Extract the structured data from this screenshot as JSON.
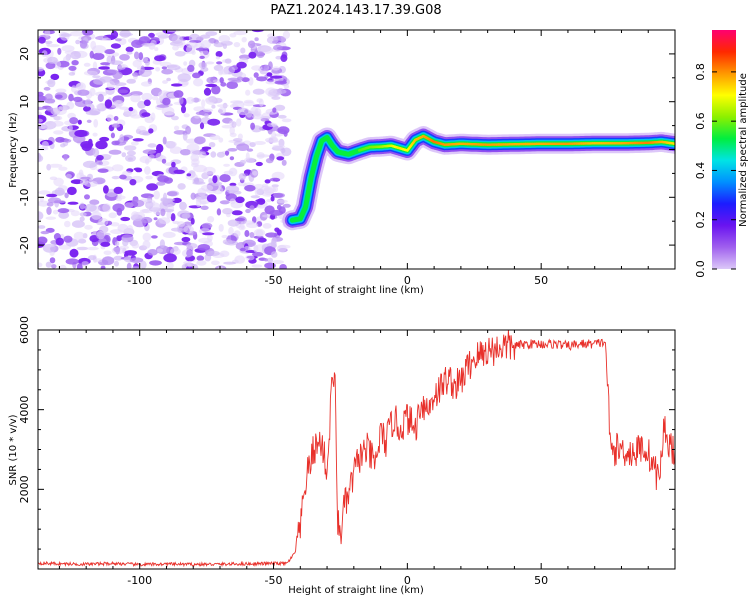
{
  "chart_data": [
    {
      "type": "heatmap",
      "title": "PAZ1.2024.143.17.39.G08",
      "xlabel": "Height of straight line (km)",
      "ylabel": "Frequency (Hz)",
      "colorbar_label": "Normalized spectral amplitude",
      "xlim": [
        -138,
        100
      ],
      "ylim": [
        -25,
        25
      ],
      "xticks": [
        -100,
        -50,
        0,
        50
      ],
      "xtick_labels": [
        "-100",
        "-50",
        "0",
        "50"
      ],
      "yticks": [
        -20,
        -10,
        0,
        10,
        20
      ],
      "ytick_labels": [
        "-20",
        "-10",
        "0",
        "10",
        "20"
      ],
      "colorbar_ticks": [
        0.0,
        0.2,
        0.4,
        0.6,
        0.8
      ],
      "colorbar_tick_labels": [
        "0.0",
        "0.2",
        "0.4",
        "0.6",
        "0.8"
      ],
      "colormap": [
        "#dcc8f8",
        "#a060ee",
        "#6a14f0",
        "#1c1cff",
        "#0090ff",
        "#00e4e4",
        "#00ee40",
        "#8cf000",
        "#ffff00",
        "#ff9800",
        "#ff2800",
        "#ff0070"
      ],
      "noise_region_x": [
        -138,
        -45
      ],
      "ridge": {
        "x": [
          -43,
          -40,
          -38,
          -36,
          -34,
          -32,
          -30,
          -28,
          -26,
          -22,
          -18,
          -14,
          -10,
          -6,
          -3,
          0,
          3,
          6,
          8,
          10,
          14,
          20,
          30,
          40,
          50,
          60,
          70,
          80,
          90,
          95,
          100
        ],
        "y": [
          -14.8,
          -14.5,
          -12.0,
          -6.0,
          -1.5,
          1.8,
          2.5,
          0.8,
          -0.5,
          -1.0,
          -0.2,
          0.5,
          0.6,
          0.8,
          0.3,
          -0.2,
          2.0,
          2.8,
          2.2,
          1.6,
          1.0,
          1.2,
          1.0,
          1.1,
          1.2,
          1.2,
          1.3,
          1.3,
          1.4,
          1.6,
          1.2
        ],
        "amplitude": [
          0.35,
          0.38,
          0.32,
          0.3,
          0.32,
          0.35,
          0.36,
          0.38,
          0.42,
          0.55,
          0.6,
          0.62,
          0.65,
          0.7,
          0.75,
          0.72,
          0.78,
          0.8,
          0.82,
          0.85,
          0.82,
          0.8,
          0.82,
          0.8,
          0.8,
          0.82,
          0.78,
          0.8,
          0.84,
          0.8,
          0.75
        ]
      }
    },
    {
      "type": "line",
      "xlabel": "Height of straight line (km)",
      "ylabel": "SNR (10 * v/v)",
      "xlim": [
        -138,
        100
      ],
      "ylim": [
        0,
        6000
      ],
      "xticks": [
        -100,
        -50,
        0,
        50
      ],
      "xtick_labels": [
        "-100",
        "-50",
        "0",
        "50"
      ],
      "yticks": [
        2000,
        4000,
        6000
      ],
      "ytick_labels": [
        "2000",
        "4000",
        "6000"
      ],
      "color": "#e8302a",
      "series": [
        {
          "x": [
            -138,
            -130,
            -120,
            -110,
            -100,
            -90,
            -80,
            -70,
            -60,
            -50,
            -45,
            -42,
            -40,
            -38,
            -35,
            -32,
            -30,
            -29,
            -28,
            -27,
            -26,
            -25,
            -24,
            -22,
            -20,
            -18,
            -15,
            -12,
            -10,
            -8,
            -5,
            -3,
            0,
            3,
            5,
            8,
            10,
            12,
            15,
            18,
            20,
            22,
            25,
            28,
            30,
            33,
            35,
            40,
            45,
            50,
            55,
            60,
            65,
            70,
            74,
            76,
            77,
            80,
            85,
            88,
            90,
            92,
            94,
            96,
            98,
            100
          ],
          "y": [
            150,
            130,
            120,
            140,
            110,
            125,
            115,
            120,
            130,
            140,
            140,
            400,
            1000,
            2200,
            3000,
            3200,
            2400,
            3600,
            5000,
            4500,
            1200,
            800,
            1500,
            1800,
            2400,
            2800,
            3000,
            2600,
            3400,
            3200,
            3800,
            3500,
            3800,
            3500,
            4200,
            4000,
            4400,
            4500,
            4800,
            4600,
            4700,
            5000,
            5300,
            5400,
            5500,
            5500,
            5600,
            5600,
            5650,
            5650,
            5650,
            5600,
            5650,
            5650,
            5700,
            2900,
            3000,
            3000,
            2900,
            3100,
            2900,
            2600,
            2200,
            3600,
            3100,
            3000
          ]
        }
      ]
    }
  ]
}
